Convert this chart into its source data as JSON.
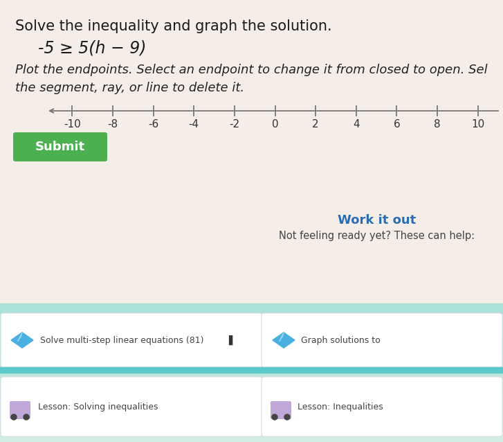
{
  "title": "Solve the inequality and graph the solution.",
  "inequality": "-5 ≥ 5(h − 9)",
  "instruction_line1": "Plot the endpoints. Select an endpoint to change it from closed to open. Sel",
  "instruction_line2": "the segment, ray, or line to delete it.",
  "tick_values": [
    -10,
    -8,
    -6,
    -4,
    -2,
    0,
    2,
    4,
    6,
    8,
    10
  ],
  "submit_label": "Submit",
  "submit_color": "#4caf50",
  "submit_text_color": "#ffffff",
  "work_it_out_text": "Work it out",
  "work_it_out_color": "#2a6db5",
  "not_feeling_text": "Not feeling ready yet? These can help:",
  "not_feeling_color": "#444444",
  "bg_top_color": "#f0ece8",
  "bg_bottom_color": "#c8e8e8",
  "panel_bg": "#ffffff",
  "panel_border": "#dddddd",
  "teal_bar_color": "#5bc8cc",
  "diamond_blue": "#4ab0e0",
  "bottom_left_text": "Solve multi-step linear equations (81)",
  "bottom_right_text": "Graph solutions to",
  "bottom_left2_text": "Lesson: Solving inequalities",
  "bottom_right2_text": "Lesson: Inequalities",
  "title_fontsize": 15,
  "ineq_fontsize": 17,
  "instr_fontsize": 13,
  "tick_fontsize": 11
}
